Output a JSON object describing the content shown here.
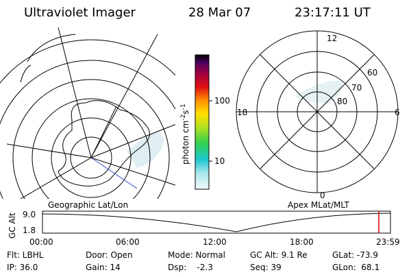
{
  "header": {
    "title": "Ultraviolet Imager",
    "date": "28 Mar 07",
    "time": "23:17:11 UT"
  },
  "colorbar": {
    "unit": "photon cm",
    "unit_exp1": "-2",
    "unit_mid": "s",
    "unit_exp2": "-1",
    "ticks": [
      "100",
      "10"
    ]
  },
  "polar": {
    "labels": [
      "12",
      "18",
      "6",
      "0",
      "60",
      "70",
      "80"
    ]
  },
  "map_labels": {
    "left": "Geographic Lat/Lon",
    "right": "Apex MLat/MLT"
  },
  "timeline": {
    "ylabel": "GC Alt",
    "yticks": [
      "9.0",
      "1.8"
    ],
    "xticks": [
      "00:00",
      "06:00",
      "12:00",
      "18:00",
      "23:59"
    ]
  },
  "info": {
    "rows": [
      [
        "Flt: LBHL",
        "Door: Open",
        "Mode: Normal",
        "GC Alt: 9.1 Re",
        "GLat: -73.9"
      ],
      [
        "IP: 36.0",
        "Gain: 14",
        "Dsp:    -2.3",
        "Seq: 39",
        "GLon:  68.1"
      ]
    ]
  }
}
